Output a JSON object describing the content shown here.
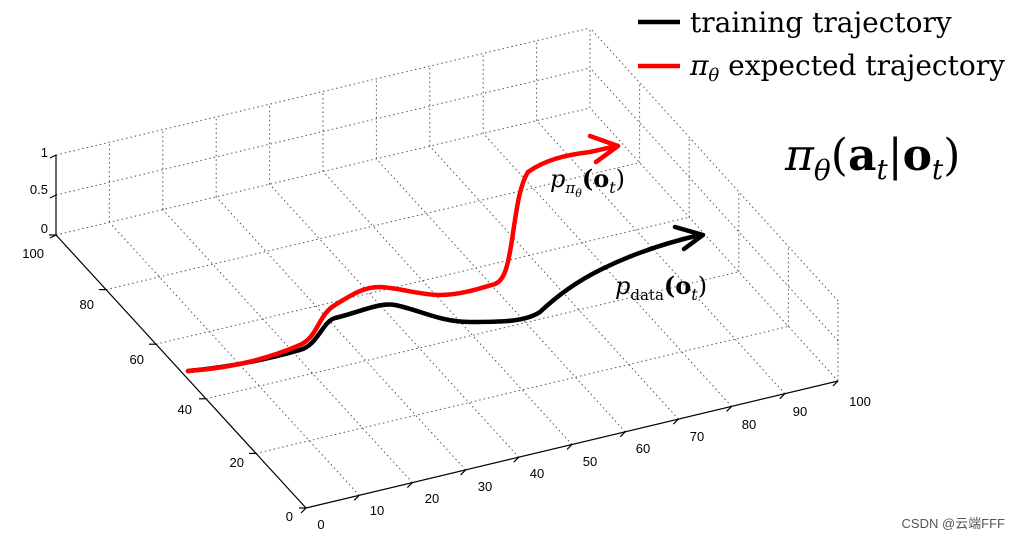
{
  "legend": {
    "items": [
      {
        "label": "training trajectory",
        "color": "#000000"
      },
      {
        "prefix": "π",
        "sub": "θ",
        "label": " expected trajectory",
        "color": "#ff0000"
      }
    ]
  },
  "formula": {
    "pi": "π",
    "theta": "θ",
    "open": "(",
    "a": "a",
    "t1": "t",
    "bar": "|",
    "o": "o",
    "t2": "t",
    "close": ")"
  },
  "curve_labels": {
    "expected": {
      "p": "p",
      "sub_pi": "π",
      "sub_theta": "θ",
      "arg": "(o",
      "t": "t",
      "close": ")"
    },
    "data": {
      "p": "p",
      "sub": "data",
      "arg": "(o",
      "t": "t",
      "close": ")"
    }
  },
  "axes": {
    "z_ticks": [
      "0",
      "0.5",
      "1"
    ],
    "y_ticks": [
      "0",
      "20",
      "40",
      "60",
      "80",
      "100"
    ],
    "x_ticks": [
      "0",
      "10",
      "20",
      "30",
      "40",
      "50",
      "60",
      "70",
      "80",
      "90",
      "100"
    ]
  },
  "watermark": "CSDN @云端FFF"
}
